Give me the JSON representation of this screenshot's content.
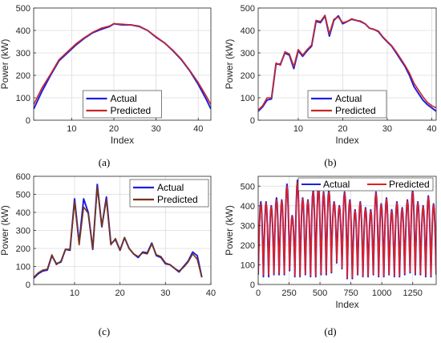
{
  "chart_data": [
    {
      "panel": "a",
      "caption": "(a)",
      "type": "line",
      "xlabel": "Index",
      "ylabel": "Power (kW)",
      "xlim": [
        1,
        43
      ],
      "ylim": [
        0,
        500
      ],
      "xticks": [
        "10",
        "20",
        "30",
        "40"
      ],
      "xtick_values": [
        10,
        20,
        30,
        40
      ],
      "yticks": [
        "0",
        "100",
        "200",
        "300",
        "400",
        "500"
      ],
      "ytick_values": [
        0,
        100,
        200,
        300,
        400,
        500
      ],
      "grid": true,
      "legend_position": "bottom-center",
      "series": [
        {
          "name": "Actual",
          "color": "#1f1fe0",
          "x": [
            1,
            3,
            5,
            7,
            9,
            11,
            13,
            15,
            17,
            19,
            20,
            22,
            24,
            26,
            28,
            30,
            32,
            34,
            36,
            38,
            40,
            42,
            43
          ],
          "y": [
            50,
            130,
            200,
            265,
            300,
            335,
            365,
            390,
            405,
            418,
            430,
            425,
            425,
            418,
            400,
            370,
            345,
            310,
            270,
            220,
            160,
            90,
            50
          ]
        },
        {
          "name": "Predicted",
          "color": "#c8282a",
          "x": [
            1,
            3,
            5,
            7,
            9,
            11,
            13,
            15,
            17,
            19,
            20,
            22,
            24,
            26,
            28,
            30,
            32,
            34,
            36,
            38,
            40,
            42,
            43
          ],
          "y": [
            70,
            145,
            205,
            270,
            305,
            340,
            368,
            392,
            410,
            420,
            430,
            428,
            425,
            420,
            400,
            372,
            345,
            312,
            272,
            222,
            168,
            105,
            70
          ]
        }
      ]
    },
    {
      "panel": "b",
      "caption": "(b)",
      "type": "line",
      "xlabel": "Index",
      "ylabel": "Power (kW)",
      "xlim": [
        1,
        41
      ],
      "ylim": [
        0,
        500
      ],
      "xticks": [
        "10",
        "20",
        "30",
        "40"
      ],
      "xtick_values": [
        10,
        20,
        30,
        40
      ],
      "yticks": [
        "0",
        "100",
        "200",
        "300",
        "400",
        "500"
      ],
      "ytick_values": [
        0,
        100,
        200,
        300,
        400,
        500
      ],
      "grid": true,
      "legend_position": "bottom-center",
      "series": [
        {
          "name": "Actual",
          "color": "#1f1fe0",
          "x": [
            1,
            2,
            3,
            4,
            5,
            6,
            7,
            8,
            9,
            10,
            11,
            12,
            13,
            14,
            15,
            16,
            17,
            18,
            19,
            20,
            21,
            22,
            23,
            24,
            25,
            26,
            27,
            28,
            29,
            30,
            31,
            32,
            33,
            34,
            35,
            36,
            37,
            38,
            39,
            40,
            41
          ],
          "y": [
            40,
            60,
            90,
            95,
            250,
            250,
            300,
            290,
            230,
            310,
            285,
            310,
            330,
            440,
            435,
            465,
            375,
            445,
            465,
            430,
            440,
            450,
            445,
            440,
            430,
            410,
            405,
            395,
            370,
            350,
            330,
            300,
            270,
            240,
            200,
            150,
            120,
            90,
            70,
            55,
            40
          ]
        },
        {
          "name": "Predicted",
          "color": "#c8282a",
          "x": [
            1,
            2,
            3,
            4,
            5,
            6,
            7,
            8,
            9,
            10,
            11,
            12,
            13,
            14,
            15,
            16,
            17,
            18,
            19,
            20,
            21,
            22,
            23,
            24,
            25,
            26,
            27,
            28,
            29,
            30,
            31,
            32,
            33,
            34,
            35,
            36,
            37,
            38,
            39,
            40,
            41
          ],
          "y": [
            45,
            65,
            100,
            100,
            255,
            245,
            305,
            295,
            240,
            315,
            290,
            315,
            335,
            445,
            440,
            468,
            385,
            450,
            460,
            435,
            440,
            452,
            445,
            442,
            430,
            410,
            405,
            398,
            372,
            352,
            332,
            305,
            275,
            245,
            210,
            165,
            135,
            105,
            80,
            65,
            55
          ]
        }
      ]
    },
    {
      "panel": "c",
      "caption": "(c)",
      "type": "line",
      "xlabel": "",
      "ylabel": "Power (kW)",
      "xlim": [
        1,
        40
      ],
      "ylim": [
        0,
        600
      ],
      "xticks": [
        "10",
        "20",
        "30",
        "40"
      ],
      "xtick_values": [
        10,
        20,
        30,
        40
      ],
      "yticks": [
        "0",
        "100",
        "200",
        "300",
        "400",
        "500",
        "600"
      ],
      "ytick_values": [
        0,
        100,
        200,
        300,
        400,
        500,
        600
      ],
      "grid": true,
      "legend_position": "top-right",
      "series": [
        {
          "name": "Actual",
          "color": "#1f1fe0",
          "x": [
            1,
            2,
            3,
            4,
            5,
            6,
            7,
            8,
            9,
            10,
            11,
            12,
            13,
            14,
            15,
            16,
            17,
            18,
            19,
            20,
            21,
            22,
            23,
            24,
            25,
            26,
            27,
            28,
            29,
            30,
            31,
            32,
            33,
            34,
            35,
            36,
            37,
            38
          ],
          "y": [
            35,
            60,
            75,
            80,
            160,
            115,
            125,
            195,
            190,
            475,
            230,
            475,
            400,
            195,
            555,
            320,
            485,
            225,
            250,
            190,
            260,
            200,
            170,
            150,
            180,
            175,
            230,
            160,
            150,
            115,
            110,
            90,
            70,
            100,
            130,
            180,
            160,
            40
          ]
        },
        {
          "name": "Predicted",
          "color": "#7a3512",
          "x": [
            1,
            2,
            3,
            4,
            5,
            6,
            7,
            8,
            9,
            10,
            11,
            12,
            13,
            14,
            15,
            16,
            17,
            18,
            19,
            20,
            21,
            22,
            23,
            24,
            25,
            26,
            27,
            28,
            29,
            30,
            31,
            32,
            33,
            34,
            35,
            36,
            37,
            38
          ],
          "y": [
            40,
            65,
            80,
            85,
            165,
            110,
            130,
            195,
            195,
            460,
            220,
            430,
            395,
            200,
            540,
            325,
            470,
            220,
            255,
            190,
            260,
            200,
            170,
            155,
            175,
            170,
            225,
            165,
            155,
            120,
            110,
            90,
            75,
            95,
            125,
            170,
            140,
            40
          ]
        }
      ]
    },
    {
      "panel": "d",
      "caption": "(d)",
      "type": "line",
      "xlabel": "Index",
      "ylabel": "Power (kW)",
      "xlim": [
        0,
        1440
      ],
      "ylim": [
        0,
        550
      ],
      "xticks": [
        "0",
        "250",
        "500",
        "750",
        "1000",
        "1250"
      ],
      "xtick_values": [
        0,
        250,
        500,
        750,
        1000,
        1250
      ],
      "yticks": [
        "0",
        "100",
        "200",
        "300",
        "400",
        "500"
      ],
      "ytick_values": [
        0,
        100,
        200,
        300,
        400,
        500
      ],
      "grid": true,
      "legend_position": "top",
      "series": [
        {
          "name": "Actual",
          "color": "#1f1fe0",
          "cycle_peaks": [
            420,
            420,
            400,
            440,
            430,
            510,
            350,
            530,
            440,
            430,
            480,
            500,
            470,
            480,
            420,
            400,
            470,
            430,
            380,
            420,
            390,
            380,
            470,
            410,
            440,
            380,
            420,
            390,
            430,
            480,
            420,
            400,
            450,
            410
          ],
          "cycle_troughs": [
            50,
            40,
            60,
            50,
            50,
            70,
            80,
            40,
            60,
            50,
            40,
            70,
            50,
            60,
            140,
            110,
            80,
            30,
            50,
            60,
            40,
            50,
            60,
            40,
            50,
            60,
            40,
            50,
            70,
            60,
            50,
            60,
            40,
            50
          ]
        },
        {
          "name": "Predicted",
          "color": "#e02020",
          "cycle_peaks": [
            410,
            415,
            395,
            430,
            425,
            500,
            345,
            520,
            435,
            425,
            470,
            495,
            465,
            470,
            415,
            395,
            465,
            425,
            375,
            415,
            385,
            375,
            465,
            405,
            435,
            375,
            415,
            385,
            425,
            470,
            415,
            395,
            445,
            405
          ],
          "cycle_troughs": [
            60,
            50,
            65,
            55,
            55,
            75,
            85,
            45,
            65,
            55,
            45,
            75,
            55,
            65,
            145,
            115,
            85,
            35,
            55,
            65,
            45,
            55,
            65,
            45,
            55,
            65,
            45,
            55,
            75,
            65,
            55,
            65,
            45,
            55
          ]
        }
      ]
    }
  ]
}
